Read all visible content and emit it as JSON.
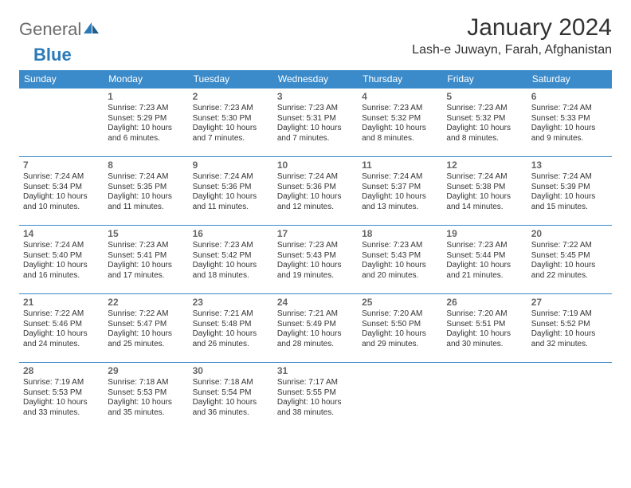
{
  "brand": {
    "word1": "General",
    "word2": "Blue"
  },
  "title": "January 2024",
  "location": "Lash-e Juwayn, Farah, Afghanistan",
  "colors": {
    "header_bg": "#3b8bca",
    "header_text": "#ffffff",
    "border": "#3b8bca",
    "text": "#333333",
    "brand_gray": "#6a6a6a",
    "brand_blue": "#2a7ab9",
    "background": "#ffffff"
  },
  "day_headers": [
    "Sunday",
    "Monday",
    "Tuesday",
    "Wednesday",
    "Thursday",
    "Friday",
    "Saturday"
  ],
  "weeks": [
    [
      {
        "n": "",
        "sr": "",
        "ss": "",
        "dl": ""
      },
      {
        "n": "1",
        "sr": "Sunrise: 7:23 AM",
        "ss": "Sunset: 5:29 PM",
        "dl": "Daylight: 10 hours and 6 minutes."
      },
      {
        "n": "2",
        "sr": "Sunrise: 7:23 AM",
        "ss": "Sunset: 5:30 PM",
        "dl": "Daylight: 10 hours and 7 minutes."
      },
      {
        "n": "3",
        "sr": "Sunrise: 7:23 AM",
        "ss": "Sunset: 5:31 PM",
        "dl": "Daylight: 10 hours and 7 minutes."
      },
      {
        "n": "4",
        "sr": "Sunrise: 7:23 AM",
        "ss": "Sunset: 5:32 PM",
        "dl": "Daylight: 10 hours and 8 minutes."
      },
      {
        "n": "5",
        "sr": "Sunrise: 7:23 AM",
        "ss": "Sunset: 5:32 PM",
        "dl": "Daylight: 10 hours and 8 minutes."
      },
      {
        "n": "6",
        "sr": "Sunrise: 7:24 AM",
        "ss": "Sunset: 5:33 PM",
        "dl": "Daylight: 10 hours and 9 minutes."
      }
    ],
    [
      {
        "n": "7",
        "sr": "Sunrise: 7:24 AM",
        "ss": "Sunset: 5:34 PM",
        "dl": "Daylight: 10 hours and 10 minutes."
      },
      {
        "n": "8",
        "sr": "Sunrise: 7:24 AM",
        "ss": "Sunset: 5:35 PM",
        "dl": "Daylight: 10 hours and 11 minutes."
      },
      {
        "n": "9",
        "sr": "Sunrise: 7:24 AM",
        "ss": "Sunset: 5:36 PM",
        "dl": "Daylight: 10 hours and 11 minutes."
      },
      {
        "n": "10",
        "sr": "Sunrise: 7:24 AM",
        "ss": "Sunset: 5:36 PM",
        "dl": "Daylight: 10 hours and 12 minutes."
      },
      {
        "n": "11",
        "sr": "Sunrise: 7:24 AM",
        "ss": "Sunset: 5:37 PM",
        "dl": "Daylight: 10 hours and 13 minutes."
      },
      {
        "n": "12",
        "sr": "Sunrise: 7:24 AM",
        "ss": "Sunset: 5:38 PM",
        "dl": "Daylight: 10 hours and 14 minutes."
      },
      {
        "n": "13",
        "sr": "Sunrise: 7:24 AM",
        "ss": "Sunset: 5:39 PM",
        "dl": "Daylight: 10 hours and 15 minutes."
      }
    ],
    [
      {
        "n": "14",
        "sr": "Sunrise: 7:24 AM",
        "ss": "Sunset: 5:40 PM",
        "dl": "Daylight: 10 hours and 16 minutes."
      },
      {
        "n": "15",
        "sr": "Sunrise: 7:23 AM",
        "ss": "Sunset: 5:41 PM",
        "dl": "Daylight: 10 hours and 17 minutes."
      },
      {
        "n": "16",
        "sr": "Sunrise: 7:23 AM",
        "ss": "Sunset: 5:42 PM",
        "dl": "Daylight: 10 hours and 18 minutes."
      },
      {
        "n": "17",
        "sr": "Sunrise: 7:23 AM",
        "ss": "Sunset: 5:43 PM",
        "dl": "Daylight: 10 hours and 19 minutes."
      },
      {
        "n": "18",
        "sr": "Sunrise: 7:23 AM",
        "ss": "Sunset: 5:43 PM",
        "dl": "Daylight: 10 hours and 20 minutes."
      },
      {
        "n": "19",
        "sr": "Sunrise: 7:23 AM",
        "ss": "Sunset: 5:44 PM",
        "dl": "Daylight: 10 hours and 21 minutes."
      },
      {
        "n": "20",
        "sr": "Sunrise: 7:22 AM",
        "ss": "Sunset: 5:45 PM",
        "dl": "Daylight: 10 hours and 22 minutes."
      }
    ],
    [
      {
        "n": "21",
        "sr": "Sunrise: 7:22 AM",
        "ss": "Sunset: 5:46 PM",
        "dl": "Daylight: 10 hours and 24 minutes."
      },
      {
        "n": "22",
        "sr": "Sunrise: 7:22 AM",
        "ss": "Sunset: 5:47 PM",
        "dl": "Daylight: 10 hours and 25 minutes."
      },
      {
        "n": "23",
        "sr": "Sunrise: 7:21 AM",
        "ss": "Sunset: 5:48 PM",
        "dl": "Daylight: 10 hours and 26 minutes."
      },
      {
        "n": "24",
        "sr": "Sunrise: 7:21 AM",
        "ss": "Sunset: 5:49 PM",
        "dl": "Daylight: 10 hours and 28 minutes."
      },
      {
        "n": "25",
        "sr": "Sunrise: 7:20 AM",
        "ss": "Sunset: 5:50 PM",
        "dl": "Daylight: 10 hours and 29 minutes."
      },
      {
        "n": "26",
        "sr": "Sunrise: 7:20 AM",
        "ss": "Sunset: 5:51 PM",
        "dl": "Daylight: 10 hours and 30 minutes."
      },
      {
        "n": "27",
        "sr": "Sunrise: 7:19 AM",
        "ss": "Sunset: 5:52 PM",
        "dl": "Daylight: 10 hours and 32 minutes."
      }
    ],
    [
      {
        "n": "28",
        "sr": "Sunrise: 7:19 AM",
        "ss": "Sunset: 5:53 PM",
        "dl": "Daylight: 10 hours and 33 minutes."
      },
      {
        "n": "29",
        "sr": "Sunrise: 7:18 AM",
        "ss": "Sunset: 5:53 PM",
        "dl": "Daylight: 10 hours and 35 minutes."
      },
      {
        "n": "30",
        "sr": "Sunrise: 7:18 AM",
        "ss": "Sunset: 5:54 PM",
        "dl": "Daylight: 10 hours and 36 minutes."
      },
      {
        "n": "31",
        "sr": "Sunrise: 7:17 AM",
        "ss": "Sunset: 5:55 PM",
        "dl": "Daylight: 10 hours and 38 minutes."
      },
      {
        "n": "",
        "sr": "",
        "ss": "",
        "dl": ""
      },
      {
        "n": "",
        "sr": "",
        "ss": "",
        "dl": ""
      },
      {
        "n": "",
        "sr": "",
        "ss": "",
        "dl": ""
      }
    ]
  ]
}
